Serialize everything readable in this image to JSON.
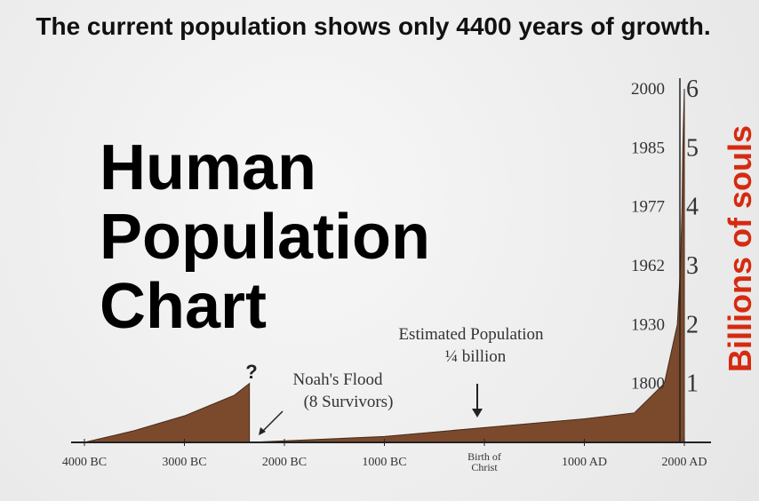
{
  "chart_data": {
    "type": "area",
    "title": "The current population shows only 4400 years of growth.",
    "big_title": "Human Population Chart",
    "ylabel": "Billions of souls",
    "x": [
      -4000,
      -3500,
      -3000,
      -2500,
      -2350,
      -2350,
      -1000,
      0,
      1000,
      1500,
      1800,
      1930,
      1962,
      1977,
      1985,
      2000
    ],
    "values": [
      0,
      0.2,
      0.45,
      0.8,
      1.0,
      0,
      0.1,
      0.25,
      0.4,
      0.5,
      1,
      2,
      3,
      4,
      5,
      6
    ],
    "color": "#7b4a2d",
    "xlim": [
      -4000,
      2000
    ],
    "ylim": [
      0,
      6
    ],
    "xticks": [
      {
        "value": -4000,
        "label": "4000 BC"
      },
      {
        "value": -3000,
        "label": "3000 BC"
      },
      {
        "value": -2000,
        "label": "2000 BC"
      },
      {
        "value": -1000,
        "label": "1000 BC"
      },
      {
        "value": 0,
        "label": "Birth of Christ"
      },
      {
        "value": 1000,
        "label": "1000 AD"
      },
      {
        "value": 2000,
        "label": "2000 AD"
      }
    ],
    "yticks": [
      1,
      2,
      3,
      4,
      5,
      6
    ],
    "year_labels": [
      "1800",
      "1930",
      "1962",
      "1977",
      "1985",
      "2000"
    ],
    "annotations": [
      "?",
      "Noah's Flood",
      "(8 Survivors)",
      "Estimated Population",
      "¼ billion"
    ]
  }
}
